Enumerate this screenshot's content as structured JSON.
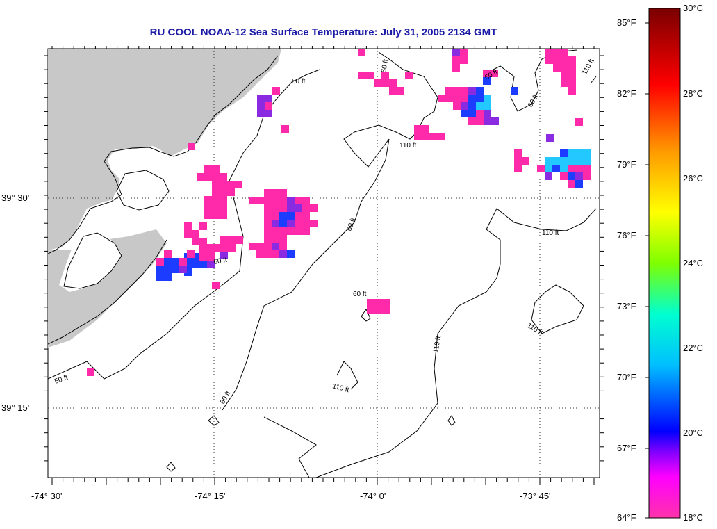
{
  "title": "RU COOL  NOAA-12  Sea Surface Temperature:  July 31, 2005 2134 GMT",
  "axes": {
    "x_ticks": [
      "-74° 30'",
      "-74° 15'",
      "-74° 0'",
      "-73° 45'"
    ],
    "y_ticks": [
      "39° 30'",
      "39° 15'"
    ]
  },
  "colorbar": {
    "fahrenheit": [
      "85°F",
      "82°F",
      "79°F",
      "76°F",
      "73°F",
      "70°F",
      "67°F",
      "64°F"
    ],
    "celsius": [
      "30°C",
      "28°C",
      "26°C",
      "24°C",
      "22°C",
      "20°C",
      "18°C"
    ]
  },
  "contour_labels": [
    "50 ft",
    "60 ft",
    "110 ft"
  ],
  "colors": {
    "land": "#c8c8c8",
    "title": "#1a1aa6",
    "sst_low": "#ff2aaa",
    "sst_purple": "#8a2be2",
    "sst_blue": "#1c3cff",
    "sst_cyan": "#22c8ff"
  }
}
